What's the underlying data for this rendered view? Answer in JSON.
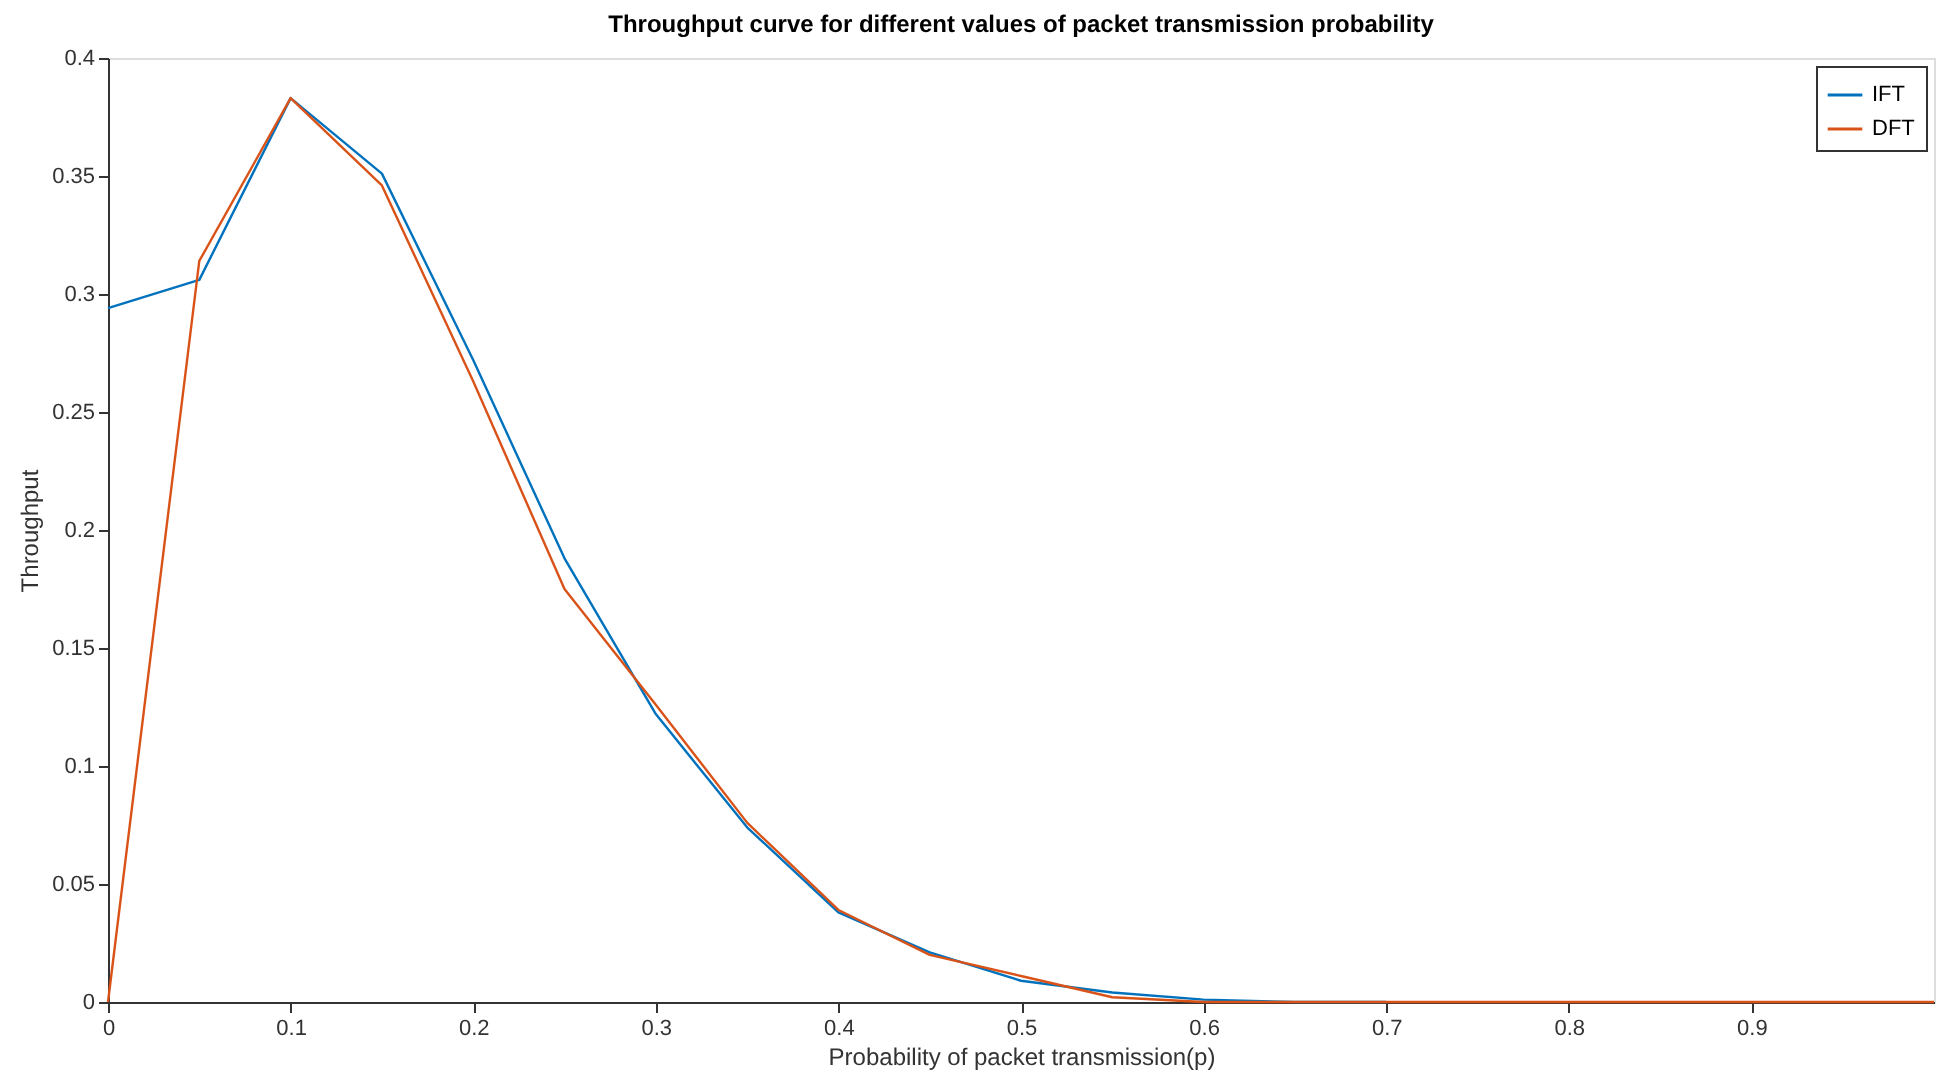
{
  "chart_data": {
    "type": "line",
    "title": "Throughput curve for different values of packet transmission probability",
    "xlabel": "Probability of packet transmission(p)",
    "ylabel": "Throughput",
    "x": [
      0,
      0.05,
      0.1,
      0.15,
      0.2,
      0.25,
      0.3,
      0.35,
      0.4,
      0.45,
      0.5,
      0.55,
      0.6,
      0.65,
      0.7,
      0.75,
      0.8,
      0.85,
      0.9,
      0.95,
      1
    ],
    "series": [
      {
        "name": "IFT",
        "color": "#0072bd",
        "values": [
          0.294,
          0.306,
          0.383,
          0.351,
          0.272,
          0.188,
          0.122,
          0.074,
          0.038,
          0.021,
          0.009,
          0.004,
          0.001,
          0,
          0,
          null,
          null,
          null,
          null,
          null,
          null
        ]
      },
      {
        "name": "DFT",
        "color": "#d95319",
        "values": [
          0,
          0.314,
          0.383,
          0.346,
          0.263,
          0.175,
          0.126,
          0.076,
          0.039,
          0.02,
          0.011,
          0.002,
          0,
          0,
          0,
          0,
          0,
          0,
          0,
          0,
          0
        ]
      }
    ],
    "xlim": [
      0,
      1
    ],
    "xticks": [
      0,
      0.1,
      0.2,
      0.3,
      0.4,
      0.5,
      0.6,
      0.7,
      0.8,
      0.9
    ],
    "ylim": [
      0,
      0.4
    ],
    "yticks": [
      0,
      0.05,
      0.1,
      0.15,
      0.2,
      0.25,
      0.3,
      0.35,
      0.4
    ],
    "grid": false,
    "legend": "top right",
    "marker": "none",
    "line_style": "solid"
  }
}
